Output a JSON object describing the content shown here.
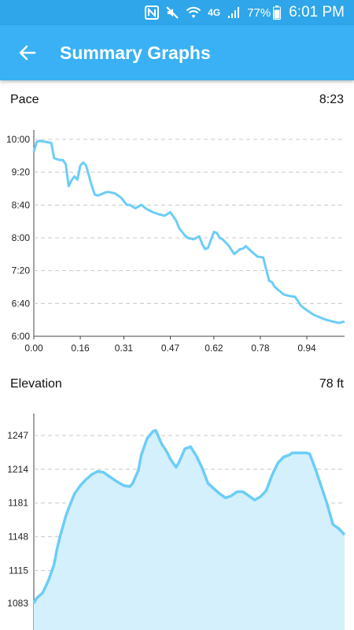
{
  "status_bar": {
    "battery": "77%",
    "time": "6:01 PM",
    "network": "4G"
  },
  "app_bar": {
    "title": "Summary Graphs",
    "back_icon": "arrow-left-icon"
  },
  "colors": {
    "status_bar": "#2fa6ea",
    "app_bar": "#39b1f4",
    "line": "#6ccdf7",
    "area_fill": "#d4f0fc"
  },
  "pace": {
    "label": "Pace",
    "value": "8:23"
  },
  "elevation": {
    "label": "Elevation",
    "value": "78 ft"
  },
  "chart_data": [
    {
      "type": "line",
      "name": "pace",
      "y_tick_labels": [
        "10:00",
        "9:20",
        "8:40",
        "8:00",
        "7:20",
        "6:40",
        "6:00"
      ],
      "x_tick_labels": [
        "0.00",
        "0.16",
        "0.31",
        "0.47",
        "0.62",
        "0.78",
        "0.94"
      ],
      "ylim_minutes": [
        6.0,
        10.0
      ],
      "xlim": [
        0.0,
        1.07
      ],
      "grid": true,
      "x": [
        0.0,
        0.01,
        0.02,
        0.04,
        0.06,
        0.07,
        0.09,
        0.1,
        0.11,
        0.12,
        0.13,
        0.14,
        0.15,
        0.16,
        0.17,
        0.18,
        0.2,
        0.21,
        0.22,
        0.23,
        0.25,
        0.26,
        0.28,
        0.3,
        0.32,
        0.33,
        0.35,
        0.37,
        0.39,
        0.41,
        0.43,
        0.45,
        0.47,
        0.49,
        0.5,
        0.52,
        0.53,
        0.55,
        0.57,
        0.58,
        0.59,
        0.6,
        0.62,
        0.63,
        0.64,
        0.65,
        0.67,
        0.69,
        0.7,
        0.71,
        0.72,
        0.73,
        0.75,
        0.77,
        0.79,
        0.81,
        0.82,
        0.83,
        0.84,
        0.86,
        0.88,
        0.9,
        0.92,
        0.94,
        0.96,
        0.97,
        0.99,
        1.01,
        1.03,
        1.05,
        1.07
      ],
      "y_minutes": [
        9.75,
        9.95,
        9.97,
        9.95,
        9.93,
        9.62,
        9.58,
        9.58,
        9.5,
        9.05,
        9.17,
        9.25,
        9.18,
        9.47,
        9.53,
        9.47,
        9.05,
        8.88,
        8.86,
        8.88,
        8.93,
        8.93,
        8.9,
        8.82,
        8.67,
        8.67,
        8.6,
        8.67,
        8.58,
        8.52,
        8.48,
        8.45,
        8.52,
        8.35,
        8.2,
        8.05,
        8.0,
        7.97,
        8.03,
        7.87,
        7.77,
        7.8,
        8.12,
        8.1,
        8.0,
        7.97,
        7.85,
        7.67,
        7.72,
        7.77,
        7.78,
        7.83,
        7.72,
        7.62,
        7.6,
        7.13,
        7.1,
        7.0,
        6.95,
        6.85,
        6.82,
        6.8,
        6.62,
        6.53,
        6.45,
        6.42,
        6.37,
        6.33,
        6.3,
        6.27,
        6.3
      ]
    },
    {
      "type": "area",
      "name": "elevation",
      "y_tick_labels": [
        "1247",
        "1214",
        "1181",
        "1148",
        "1115",
        "1083"
      ],
      "x_tick_labels": [
        "0.00",
        "0.16",
        "0.31",
        "0.47",
        "0.62",
        "0.78",
        "0.94"
      ],
      "ylim": [
        1070,
        1270
      ],
      "xlim": [
        0.0,
        1.07
      ],
      "grid": true,
      "x": [
        0.0,
        0.01,
        0.03,
        0.05,
        0.07,
        0.08,
        0.09,
        0.1,
        0.11,
        0.12,
        0.14,
        0.16,
        0.18,
        0.2,
        0.22,
        0.24,
        0.26,
        0.28,
        0.31,
        0.33,
        0.34,
        0.36,
        0.37,
        0.39,
        0.41,
        0.42,
        0.44,
        0.46,
        0.47,
        0.49,
        0.5,
        0.52,
        0.54,
        0.56,
        0.58,
        0.6,
        0.62,
        0.64,
        0.66,
        0.68,
        0.7,
        0.72,
        0.74,
        0.76,
        0.78,
        0.8,
        0.82,
        0.84,
        0.86,
        0.88,
        0.89,
        0.91,
        0.94,
        0.95,
        0.97,
        0.99,
        1.01,
        1.03,
        1.05,
        1.07
      ],
      "y": [
        1083,
        1088,
        1093,
        1105,
        1121,
        1136,
        1148,
        1158,
        1168,
        1176,
        1190,
        1198,
        1204,
        1209,
        1212,
        1211,
        1207,
        1203,
        1198,
        1197,
        1200,
        1213,
        1228,
        1244,
        1251,
        1252,
        1239,
        1230,
        1224,
        1216,
        1221,
        1234,
        1236,
        1227,
        1215,
        1200,
        1195,
        1190,
        1186,
        1188,
        1192,
        1192,
        1188,
        1184,
        1187,
        1193,
        1208,
        1220,
        1226,
        1228,
        1230,
        1230,
        1230,
        1229,
        1214,
        1197,
        1180,
        1160,
        1156,
        1150
      ]
    }
  ]
}
